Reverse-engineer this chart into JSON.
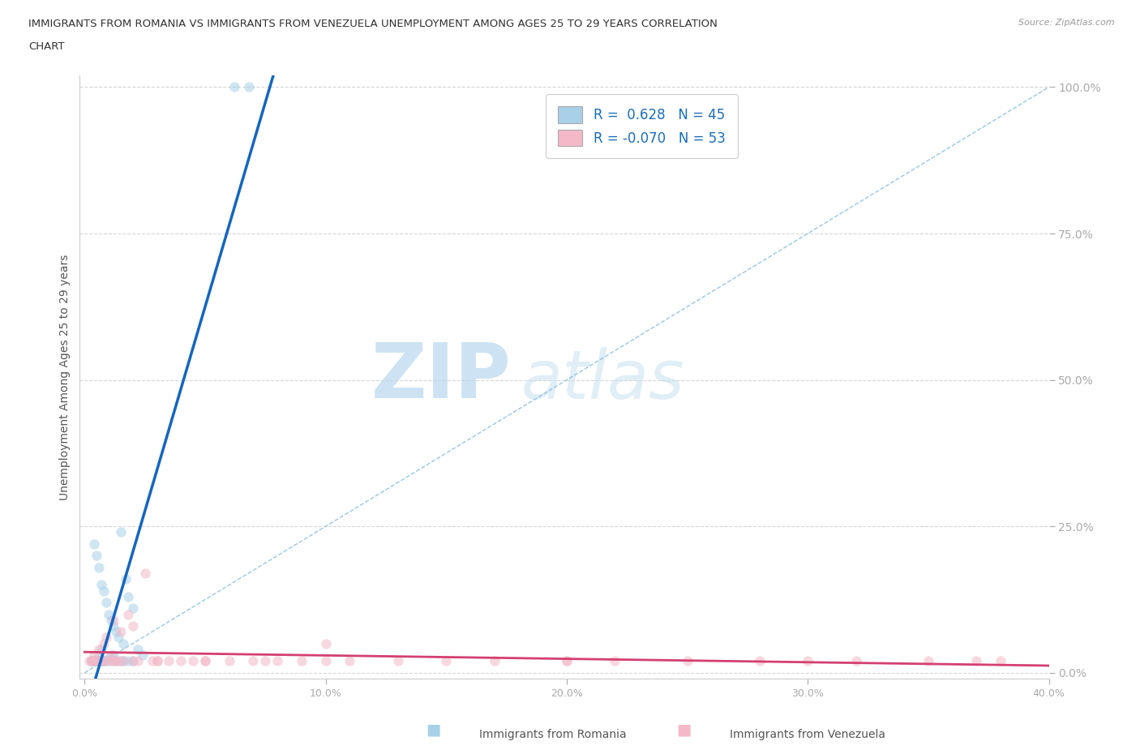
{
  "title_line1": "IMMIGRANTS FROM ROMANIA VS IMMIGRANTS FROM VENEZUELA UNEMPLOYMENT AMONG AGES 25 TO 29 YEARS CORRELATION",
  "title_line2": "CHART",
  "source": "Source: ZipAtlas.com",
  "ylabel": "Unemployment Among Ages 25 to 29 years",
  "xlim": [
    -0.002,
    0.4
  ],
  "ylim": [
    -0.01,
    1.02
  ],
  "xticks": [
    0.0,
    0.1,
    0.2,
    0.3,
    0.4
  ],
  "xticklabels": [
    "0.0%",
    "10.0%",
    "20.0%",
    "30.0%",
    "40.0%"
  ],
  "yticks": [
    0.0,
    0.25,
    0.5,
    0.75,
    1.0
  ],
  "yticklabels": [
    "0.0%",
    "25.0%",
    "50.0%",
    "75.0%",
    "100.0%"
  ],
  "romania_R": 0.628,
  "romania_N": 45,
  "venezuela_R": -0.07,
  "venezuela_N": 53,
  "romania_color": "#a8d0e8",
  "venezuela_color": "#f4b8c8",
  "romania_trend_color": "#1565c0",
  "venezuela_trend_color": "#d44070",
  "scatter_alpha": 0.55,
  "scatter_size": 80,
  "romania_x": [
    0.004,
    0.005,
    0.006,
    0.007,
    0.008,
    0.009,
    0.01,
    0.011,
    0.012,
    0.013,
    0.014,
    0.015,
    0.016,
    0.017,
    0.018,
    0.02,
    0.022,
    0.024,
    0.006,
    0.007,
    0.008,
    0.009,
    0.01,
    0.011,
    0.012,
    0.013,
    0.015,
    0.016,
    0.018,
    0.02,
    0.004,
    0.005,
    0.006,
    0.007,
    0.008,
    0.003,
    0.004,
    0.005,
    0.006,
    0.007,
    0.003,
    0.004,
    0.005,
    0.062,
    0.068
  ],
  "romania_y": [
    0.22,
    0.2,
    0.18,
    0.15,
    0.14,
    0.12,
    0.1,
    0.09,
    0.08,
    0.07,
    0.06,
    0.24,
    0.05,
    0.16,
    0.13,
    0.11,
    0.04,
    0.03,
    0.03,
    0.04,
    0.02,
    0.02,
    0.025,
    0.02,
    0.03,
    0.02,
    0.02,
    0.02,
    0.02,
    0.02,
    0.02,
    0.02,
    0.02,
    0.02,
    0.02,
    0.02,
    0.02,
    0.02,
    0.02,
    0.02,
    0.02,
    0.02,
    0.02,
    1.0,
    1.0
  ],
  "venezuela_x": [
    0.002,
    0.003,
    0.004,
    0.005,
    0.006,
    0.007,
    0.008,
    0.009,
    0.01,
    0.011,
    0.012,
    0.013,
    0.014,
    0.015,
    0.016,
    0.018,
    0.02,
    0.022,
    0.025,
    0.028,
    0.03,
    0.035,
    0.04,
    0.045,
    0.05,
    0.06,
    0.07,
    0.08,
    0.09,
    0.1,
    0.11,
    0.13,
    0.15,
    0.17,
    0.2,
    0.22,
    0.25,
    0.28,
    0.3,
    0.32,
    0.35,
    0.37,
    0.38,
    0.003,
    0.005,
    0.008,
    0.012,
    0.02,
    0.03,
    0.05,
    0.075,
    0.1,
    0.2
  ],
  "venezuela_y": [
    0.02,
    0.02,
    0.03,
    0.02,
    0.04,
    0.02,
    0.05,
    0.06,
    0.02,
    0.03,
    0.09,
    0.02,
    0.02,
    0.07,
    0.02,
    0.1,
    0.08,
    0.02,
    0.17,
    0.02,
    0.02,
    0.02,
    0.02,
    0.02,
    0.02,
    0.02,
    0.02,
    0.02,
    0.02,
    0.02,
    0.02,
    0.02,
    0.02,
    0.02,
    0.02,
    0.02,
    0.02,
    0.02,
    0.02,
    0.02,
    0.02,
    0.02,
    0.02,
    0.02,
    0.02,
    0.02,
    0.02,
    0.02,
    0.02,
    0.02,
    0.02,
    0.05,
    0.02
  ],
  "watermark_zip": "ZIP",
  "watermark_atlas": "atlas",
  "legend_romania_label": "Immigrants from Romania",
  "legend_venezuela_label": "Immigrants from Venezuela",
  "ref_line_x": [
    0.0,
    0.4
  ],
  "ref_line_y": [
    0.0,
    1.0
  ]
}
